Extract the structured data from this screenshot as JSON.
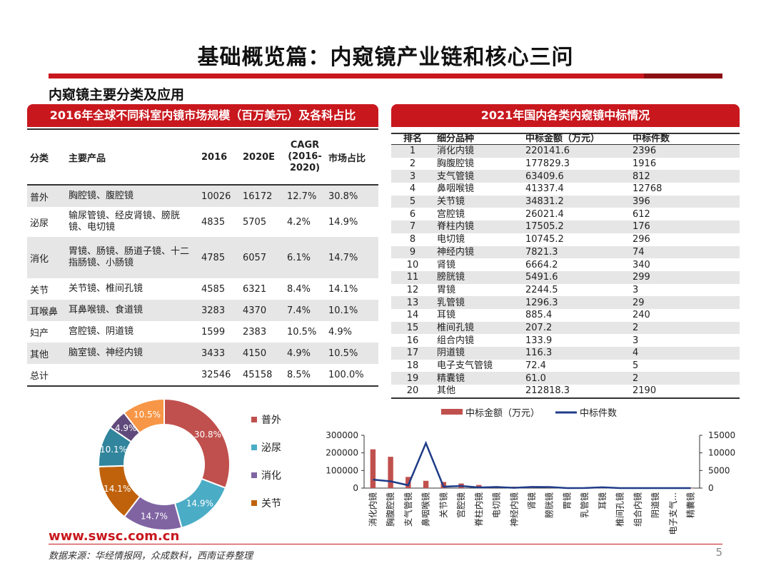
{
  "title": "基础概览篇：内窥镜产业链和核心三问",
  "subtitle": "内窥镜主要分类及应用",
  "left_banner": "2016年全球不同科室内镜市场规模（百万美元）及各科占比",
  "right_banner": "2021年国内各类内窥镜中标情况",
  "left_table": {
    "headers": [
      "分类",
      "主要产品",
      "2016",
      "2020E",
      "CAGR (2016-2020)",
      "市场占比"
    ],
    "rows": [
      [
        "普外",
        "胸腔镜、腹腔镜",
        "10026",
        "16172",
        "12.7%",
        "30.8%"
      ],
      [
        "泌尿",
        "输尿管镜、经皮肾镜、膀胱镜、电切镜",
        "4835",
        "5705",
        "4.2%",
        "14.9%"
      ],
      [
        "消化",
        "胃镜、肠镜、肠道子镜、十二指肠镜、小肠镜",
        "4785",
        "6057",
        "6.1%",
        "14.7%"
      ],
      [
        "关节",
        "关节镜、椎间孔镜",
        "4585",
        "6321",
        "8.4%",
        "14.1%"
      ],
      [
        "耳喉鼻",
        "耳鼻喉镜、食道镜",
        "3283",
        "4370",
        "7.4%",
        "10.1%"
      ],
      [
        "妇产",
        "宫腔镜、阴道镜",
        "1599",
        "2383",
        "10.5%",
        "4.9%"
      ],
      [
        "其他",
        "脑室镜、神经内镜",
        "3433",
        "4150",
        "4.9%",
        "10.5%"
      ],
      [
        "总计",
        "",
        "32546",
        "45158",
        "8.5%",
        "100.0%"
      ]
    ]
  },
  "right_table": {
    "headers": [
      "排名",
      "细分品种",
      "中标金额（万元）",
      "中标件数"
    ],
    "rows": [
      [
        "1",
        "消化内镜",
        "220141.6",
        "2396"
      ],
      [
        "2",
        "胸腹腔镜",
        "177829.3",
        "1916"
      ],
      [
        "3",
        "支气管镜",
        "63409.6",
        "812"
      ],
      [
        "4",
        "鼻咽喉镜",
        "41337.4",
        "12768"
      ],
      [
        "5",
        "关节镜",
        "34831.2",
        "396"
      ],
      [
        "6",
        "宫腔镜",
        "26021.4",
        "612"
      ],
      [
        "7",
        "脊柱内镜",
        "17505.2",
        "176"
      ],
      [
        "8",
        "电切镜",
        "10745.2",
        "296"
      ],
      [
        "9",
        "神经内镜",
        "7821.3",
        "74"
      ],
      [
        "10",
        "肾镜",
        "6664.2",
        "340"
      ],
      [
        "11",
        "膀胱镜",
        "5491.6",
        "299"
      ],
      [
        "12",
        "胃镜",
        "2244.5",
        "3"
      ],
      [
        "13",
        "乳管镜",
        "1296.3",
        "29"
      ],
      [
        "14",
        "耳镜",
        "885.4",
        "240"
      ],
      [
        "15",
        "椎间孔镜",
        "207.2",
        "2"
      ],
      [
        "16",
        "组合内镜",
        "133.9",
        "3"
      ],
      [
        "17",
        "阴道镜",
        "116.3",
        "4"
      ],
      [
        "18",
        "电子支气管镜",
        "72.4",
        "5"
      ],
      [
        "19",
        "精囊镜",
        "61.0",
        "2"
      ],
      [
        "20",
        "其他",
        "212818.3",
        "2190"
      ]
    ]
  },
  "chart_data": [
    {
      "type": "pie",
      "style": "donut",
      "slices": [
        {
          "label": "普外",
          "value": 30.8,
          "text": "30.8%",
          "color": "#c0504d"
        },
        {
          "label": "泌尿",
          "value": 14.9,
          "text": "14.9%",
          "color": "#4bacc6"
        },
        {
          "label": "消化",
          "value": 14.7,
          "text": "14.7%",
          "color": "#8064a2"
        },
        {
          "label": "关节",
          "value": 14.1,
          "text": "14.1%",
          "color": "#c0620c"
        },
        {
          "label": "耳喉鼻",
          "value": 10.1,
          "text": "10.1%",
          "color": "#31859c"
        },
        {
          "label": "妇产",
          "value": 4.9,
          "text": "4.9%",
          "color": "#604a7b"
        },
        {
          "label": "其他",
          "value": 10.5,
          "text": "10.5%",
          "color": "#f79646"
        }
      ],
      "legend": [
        "普外",
        "泌尿",
        "消化",
        "关节"
      ],
      "legend_position": "right"
    },
    {
      "type": "bar",
      "categories": [
        "消化内镜",
        "胸腹腔镜",
        "支气管镜",
        "鼻咽喉镜",
        "关节镜",
        "宫腔镜",
        "脊柱内镜",
        "电切镜",
        "神经内镜",
        "肾镜",
        "膀胱镜",
        "胃镜",
        "乳管镜",
        "耳镜",
        "椎间孔镜",
        "组合内镜",
        "阴道镜",
        "电子支气...",
        "精囊镜"
      ],
      "series": [
        {
          "name": "中标金额（万元）",
          "type": "bar",
          "axis": "left",
          "color": "#c0504d",
          "values": [
            220141.6,
            177829.3,
            63409.6,
            41337.4,
            34831.2,
            26021.4,
            17505.2,
            10745.2,
            7821.3,
            6664.2,
            5491.6,
            2244.5,
            1296.3,
            885.4,
            207.2,
            133.9,
            116.3,
            72.4,
            61.0
          ]
        },
        {
          "name": "中标件数",
          "type": "line",
          "axis": "right",
          "color": "#1f3c88",
          "values": [
            2396,
            1916,
            812,
            12768,
            396,
            612,
            176,
            296,
            74,
            340,
            299,
            3,
            29,
            240,
            2,
            3,
            4,
            5,
            2
          ]
        }
      ],
      "y_left": {
        "ticks": [
          "0",
          "100000",
          "200000",
          "300000"
        ],
        "range": [
          0,
          300000
        ]
      },
      "y_right": {
        "ticks": [
          "0",
          "5000",
          "10000",
          "15000"
        ],
        "range": [
          0,
          15000
        ]
      },
      "legend_position": "top"
    }
  ],
  "footer": {
    "url": "www.swsc.com.cn",
    "source": "数据来源：华经情报网，众成数科，西南证券整理",
    "page": "5"
  }
}
